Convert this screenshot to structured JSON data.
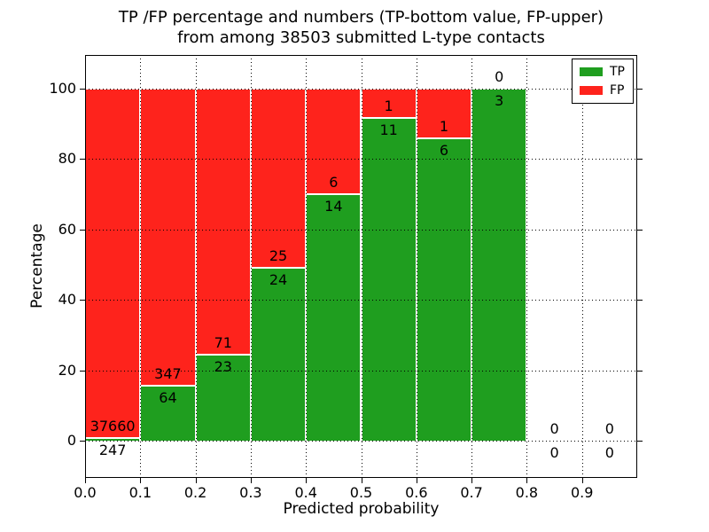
{
  "title": {
    "line1": "TP /FP percentage and numbers (TP-bottom value, FP-upper)",
    "line2": "from among 38503 submitted L-type contacts"
  },
  "chart_data": {
    "type": "bar",
    "stacked": true,
    "normalized_to_percent": true,
    "title": "TP /FP percentage and numbers (TP-bottom value, FP-upper) from among 38503 submitted L-type contacts",
    "total_submitted_contacts": 38503,
    "xlabel": "Predicted probability",
    "ylabel": "Percentage",
    "xlim": [
      0.0,
      1.0
    ],
    "ylim": [
      -10.6,
      109.4
    ],
    "grid": true,
    "bin_width": 0.1,
    "bin_starts": [
      0.0,
      0.1,
      0.2,
      0.3,
      0.4,
      0.5,
      0.6,
      0.7,
      0.8,
      0.9
    ],
    "categories": [
      "0.0-0.1",
      "0.1-0.2",
      "0.2-0.3",
      "0.3-0.4",
      "0.4-0.5",
      "0.5-0.6",
      "0.6-0.7",
      "0.7-0.8",
      "0.8-0.9",
      "0.9-1.0"
    ],
    "series": [
      {
        "name": "TP",
        "color": "#1f9e1f",
        "counts": [
          247,
          64,
          23,
          24,
          14,
          11,
          6,
          3,
          0,
          0
        ]
      },
      {
        "name": "FP",
        "color": "#fe231c",
        "counts": [
          37660,
          347,
          71,
          25,
          6,
          1,
          1,
          0,
          0,
          0
        ]
      }
    ],
    "tp_percent_approx": [
      0.65,
      15.57,
      24.47,
      48.98,
      70.0,
      91.67,
      85.71,
      100.0,
      0,
      0
    ],
    "xticks": [
      "0.0",
      "0.1",
      "0.2",
      "0.3",
      "0.4",
      "0.5",
      "0.6",
      "0.7",
      "0.8",
      "0.9"
    ],
    "yticks": [
      0,
      20,
      40,
      60,
      80,
      100
    ],
    "legend": {
      "position": "upper right",
      "entries": [
        "TP",
        "FP"
      ]
    }
  },
  "colors": {
    "tp": "#1f9e1f",
    "fp": "#fe231c",
    "grid": "#000000",
    "frame": "#000000",
    "background": "#ffffff",
    "bar_edge": "#ffffff"
  }
}
